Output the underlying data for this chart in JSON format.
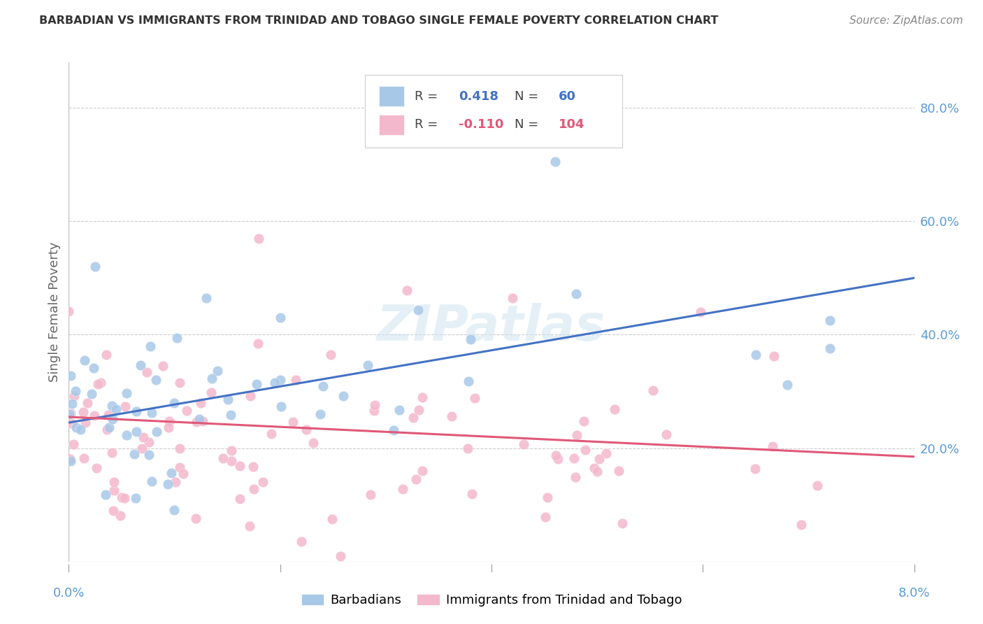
{
  "title": "BARBADIAN VS IMMIGRANTS FROM TRINIDAD AND TOBAGO SINGLE FEMALE POVERTY CORRELATION CHART",
  "source": "Source: ZipAtlas.com",
  "ylabel": "Single Female Poverty",
  "xlim": [
    0.0,
    0.08
  ],
  "ylim": [
    0.0,
    0.88
  ],
  "yticks": [
    0.0,
    0.2,
    0.4,
    0.6,
    0.8
  ],
  "ytick_labels": [
    "",
    "20.0%",
    "40.0%",
    "60.0%",
    "80.0%"
  ],
  "blue_color": "#a8c8e8",
  "pink_color": "#f4b8cc",
  "blue_line_color": "#4472c4",
  "pink_line_color": "#e05878",
  "blue_R": 0.418,
  "blue_N": 60,
  "pink_R": -0.11,
  "pink_N": 104,
  "legend_label_blue": "Barbadians",
  "legend_label_pink": "Immigrants from Trinidad and Tobago",
  "watermark": "ZIPatlas",
  "background_color": "#ffffff",
  "grid_color": "#cccccc",
  "title_color": "#333333",
  "axis_label_color": "#5b9bd5",
  "blue_line_y0": 0.245,
  "blue_line_y1": 0.5,
  "pink_line_y0": 0.255,
  "pink_line_y1": 0.185
}
